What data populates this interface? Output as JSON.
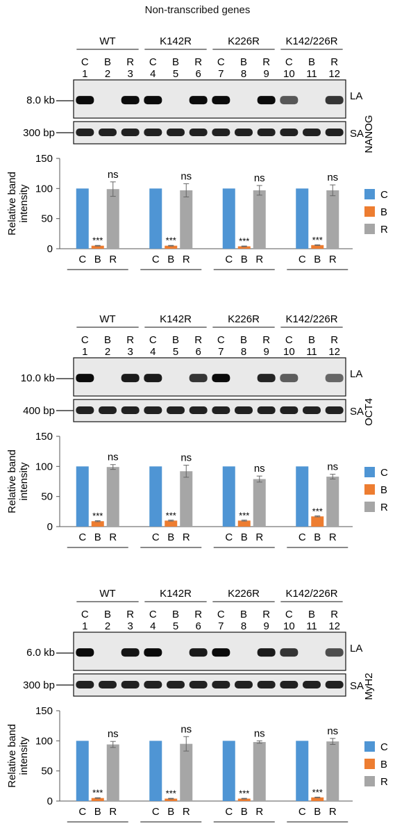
{
  "figure_title": "Non-transcribed genes",
  "groups": [
    "WT",
    "K142R",
    "K226R",
    "K142/226R"
  ],
  "lane_letters": [
    "C",
    "B",
    "R",
    "C",
    "B",
    "R",
    "C",
    "B",
    "R",
    "C",
    "B",
    "R"
  ],
  "lane_numbers": [
    "1",
    "2",
    "3",
    "4",
    "5",
    "6",
    "7",
    "8",
    "9",
    "10",
    "11",
    "12"
  ],
  "band_labels": {
    "la": "LA",
    "sa": "SA"
  },
  "y_axis_label_line1": "Relative band",
  "y_axis_label_line2": "intensity",
  "y_ticks": [
    "150",
    "100",
    "50",
    "0"
  ],
  "bar_labels": [
    "C",
    "B",
    "R"
  ],
  "significance": {
    "blocked": "***",
    "restored": "ns"
  },
  "legend": [
    {
      "label": "C",
      "color": "#4f95d4"
    },
    {
      "label": "B",
      "color": "#ed7d31"
    },
    {
      "label": "R",
      "color": "#a6a6a6"
    }
  ],
  "panels": [
    {
      "gene": "NANOG",
      "la_size": "8.0 kb",
      "sa_size": "300 bp",
      "la_band_intensity": [
        1,
        0,
        1,
        1,
        0,
        1,
        1,
        0,
        1,
        0.55,
        0,
        0.75
      ]
    },
    {
      "gene": "OCT4",
      "la_size": "10.0 kb",
      "sa_size": "400 bp",
      "la_band_intensity": [
        1,
        0,
        0.9,
        0.9,
        0,
        0.75,
        1,
        0,
        0.85,
        0.5,
        0,
        0.45
      ]
    },
    {
      "gene": "MyH2",
      "la_size": "6.0 kb",
      "sa_size": "300 bp",
      "la_band_intensity": [
        1,
        0,
        0.95,
        1,
        0,
        0.9,
        1,
        0,
        0.9,
        0.75,
        0,
        0.6
      ]
    }
  ],
  "chart_data": [
    {
      "type": "bar",
      "title": "",
      "categories": [
        "WT",
        "K142R",
        "K226R",
        "K142/226R"
      ],
      "ylabel": "Relative band intensity",
      "ylim": [
        0,
        150
      ],
      "legend_position": "right",
      "series": [
        {
          "name": "C",
          "values": [
            100,
            100,
            100,
            100
          ],
          "errors": [
            0,
            0,
            0,
            0
          ]
        },
        {
          "name": "B",
          "values": [
            5,
            5,
            4,
            6
          ],
          "errors": [
            0.5,
            0.5,
            0.5,
            0.5
          ]
        },
        {
          "name": "R",
          "values": [
            99,
            97,
            97,
            97
          ],
          "errors": [
            12,
            11,
            8,
            9
          ]
        }
      ]
    },
    {
      "type": "bar",
      "title": "",
      "categories": [
        "WT",
        "K142R",
        "K226R",
        "K142/226R"
      ],
      "ylabel": "Relative band intensity",
      "ylim": [
        0,
        150
      ],
      "legend_position": "right",
      "series": [
        {
          "name": "C",
          "values": [
            100,
            100,
            100,
            100
          ],
          "errors": [
            0,
            0,
            0,
            0
          ]
        },
        {
          "name": "B",
          "values": [
            9,
            10,
            10,
            17
          ],
          "errors": [
            0.8,
            0.8,
            0.8,
            0.8
          ]
        },
        {
          "name": "R",
          "values": [
            99,
            92,
            79,
            83
          ],
          "errors": [
            4,
            10,
            5,
            4
          ]
        }
      ]
    },
    {
      "type": "bar",
      "title": "",
      "categories": [
        "WT",
        "K142R",
        "K226R",
        "K142/226R"
      ],
      "ylabel": "Relative band intensity",
      "ylim": [
        0,
        150
      ],
      "legend_position": "right",
      "series": [
        {
          "name": "C",
          "values": [
            100,
            100,
            100,
            100
          ],
          "errors": [
            0,
            0,
            0,
            0
          ]
        },
        {
          "name": "B",
          "values": [
            5,
            4,
            4,
            6
          ],
          "errors": [
            0.5,
            0.5,
            0.5,
            0.5
          ]
        },
        {
          "name": "R",
          "values": [
            94,
            95,
            98,
            99
          ],
          "errors": [
            5,
            12,
            2,
            5
          ]
        }
      ]
    }
  ]
}
